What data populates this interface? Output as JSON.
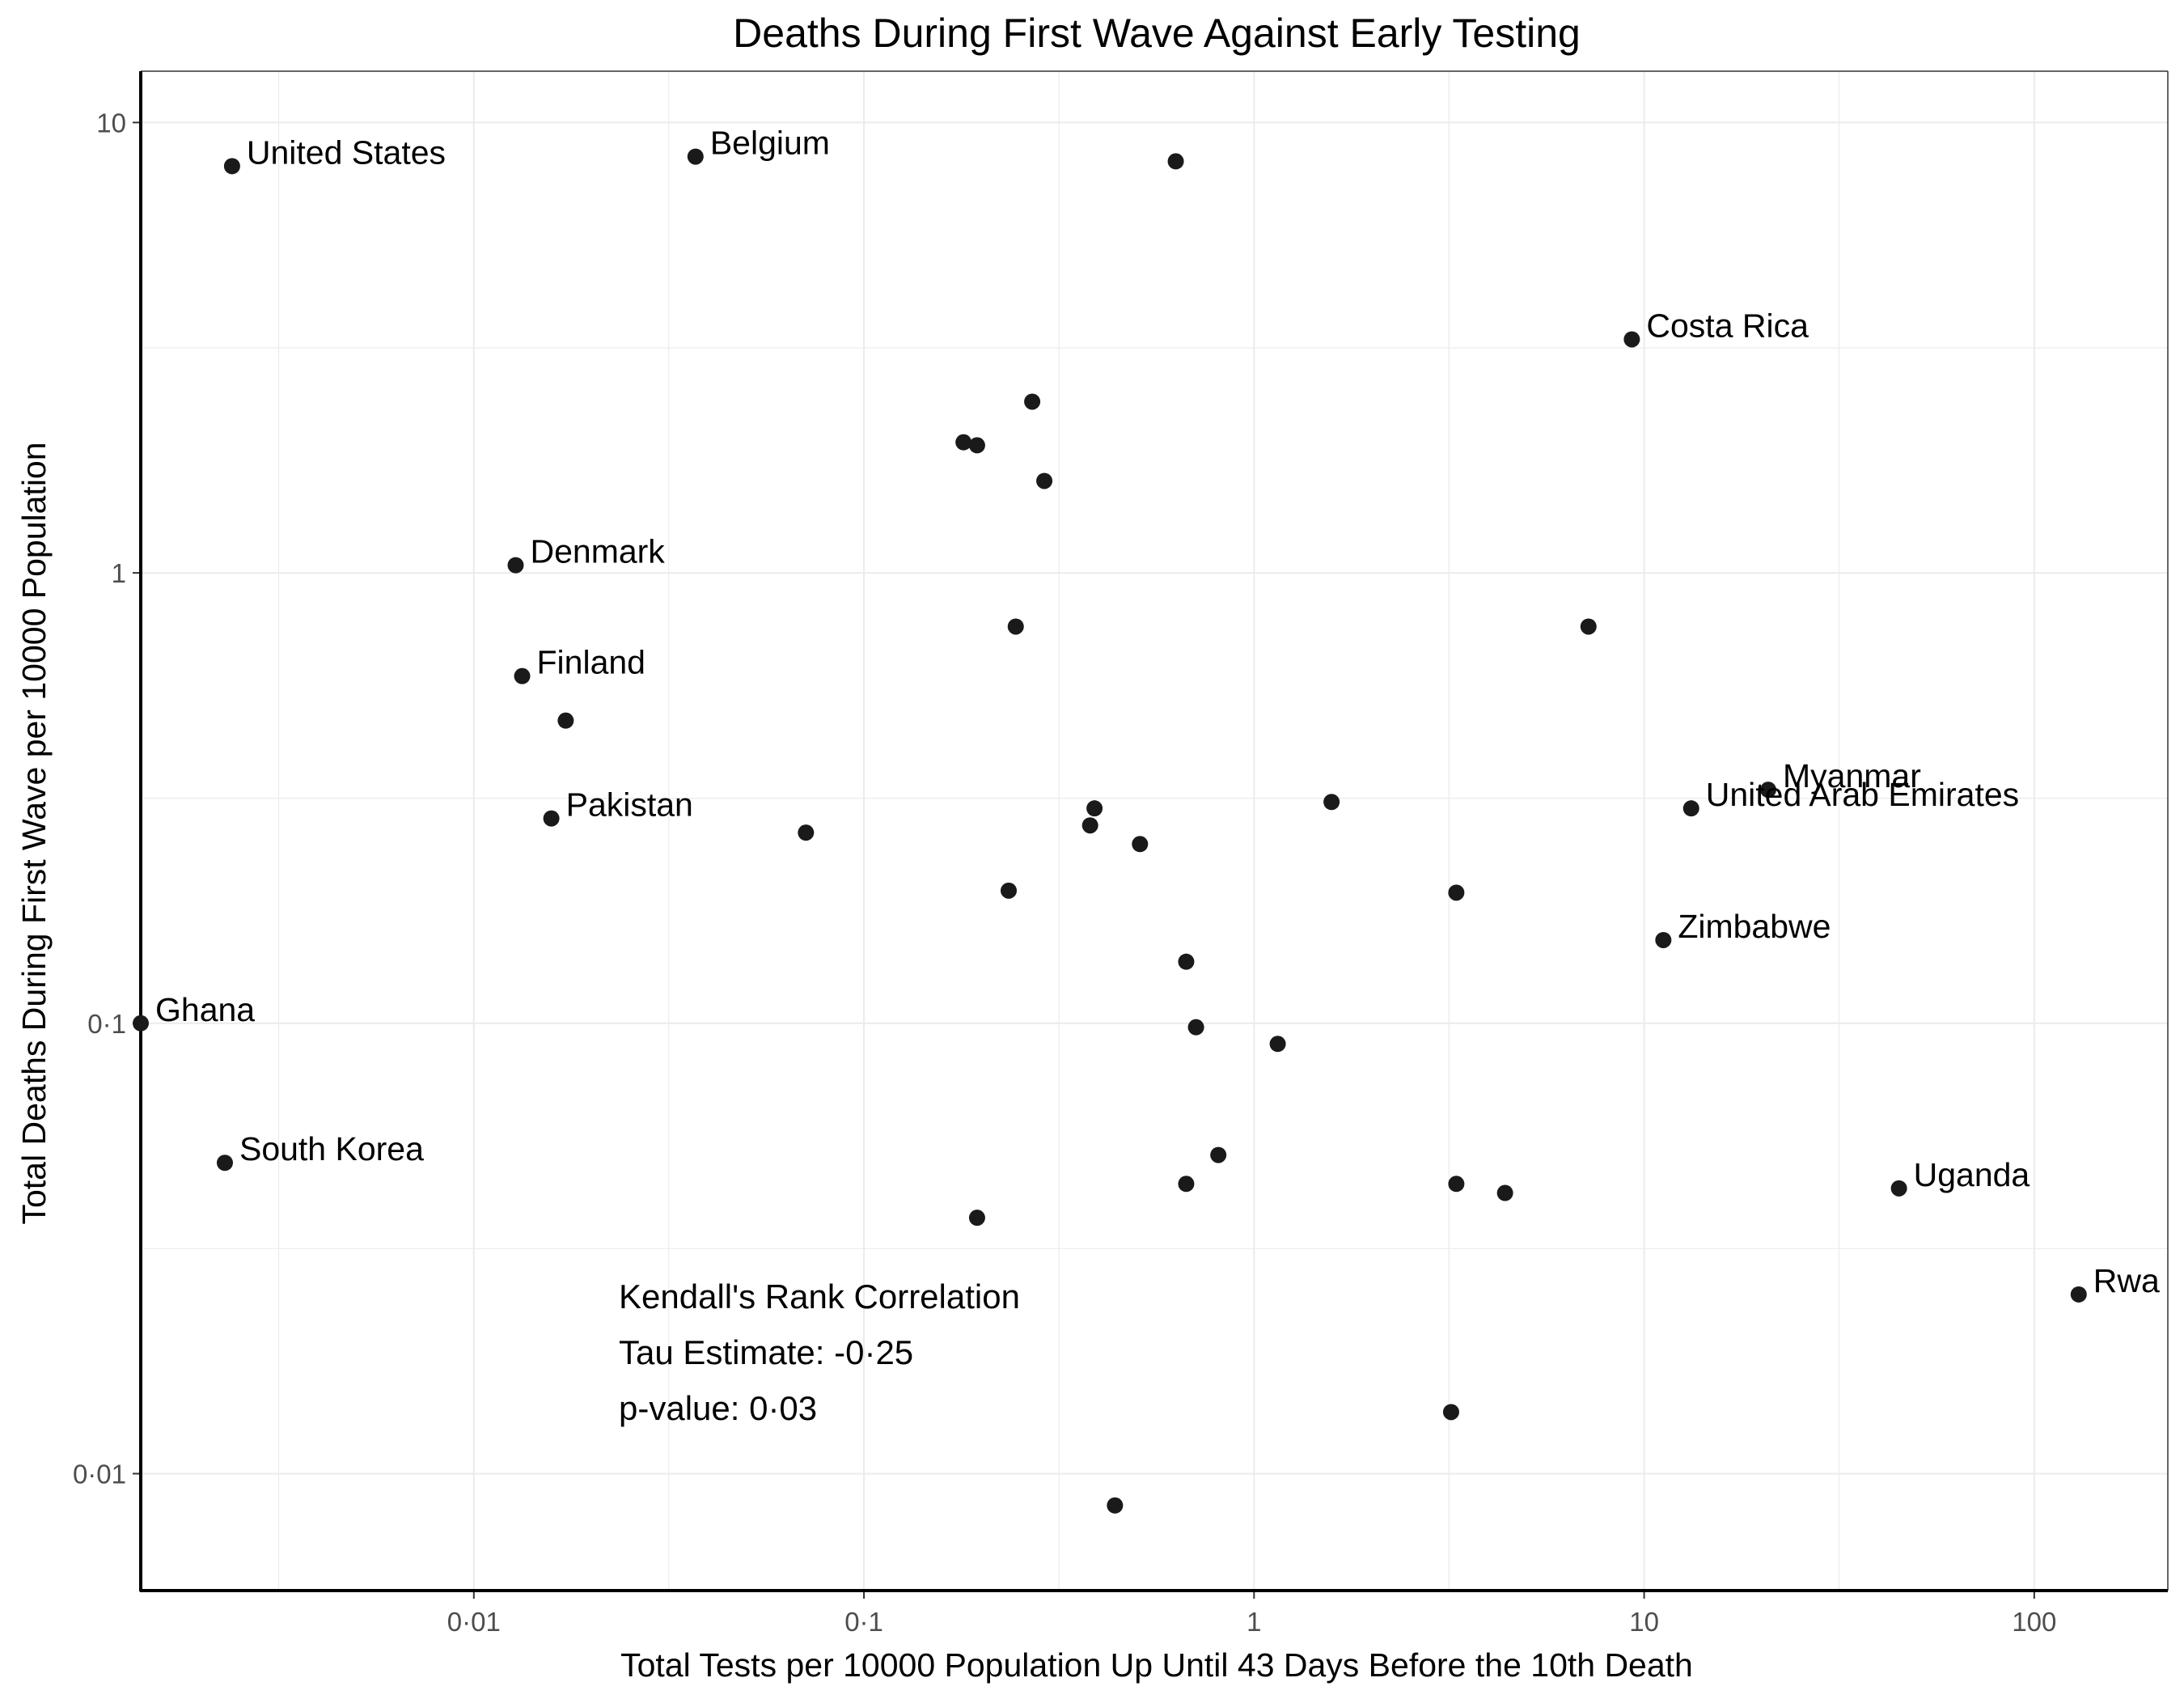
{
  "chart_data": {
    "type": "scatter",
    "title": "Deaths During First Wave Against Early Testing",
    "xlabel": "Total Tests per 10000 Population Up Until 43 Days Before the 10th Death",
    "ylabel": "Total Deaths During First Wave per 10000 Population",
    "x_scale": "log10",
    "y_scale": "log10",
    "xlim": [
      0.0014,
      220
    ],
    "ylim": [
      0.0055,
      13
    ],
    "grid": true,
    "x_ticks": [
      {
        "value": 0.01,
        "label": "0·01"
      },
      {
        "value": 0.1,
        "label": "0·1"
      },
      {
        "value": 1,
        "label": "1"
      },
      {
        "value": 10,
        "label": "10"
      },
      {
        "value": 100,
        "label": "100"
      }
    ],
    "y_ticks": [
      {
        "value": 0.01,
        "label": "0·01"
      },
      {
        "value": 0.1,
        "label": "0·1"
      },
      {
        "value": 1,
        "label": "1"
      },
      {
        "value": 10,
        "label": "10"
      }
    ],
    "points": [
      {
        "x": 0.0024,
        "y": 8.0,
        "label": "United States"
      },
      {
        "x": 0.037,
        "y": 8.4,
        "label": "Belgium"
      },
      {
        "x": 0.63,
        "y": 8.2,
        "label": ""
      },
      {
        "x": 9.3,
        "y": 3.3,
        "label": "Costa Rica"
      },
      {
        "x": 0.27,
        "y": 2.4,
        "label": ""
      },
      {
        "x": 0.18,
        "y": 1.95,
        "label": ""
      },
      {
        "x": 0.195,
        "y": 1.92,
        "label": ""
      },
      {
        "x": 0.29,
        "y": 1.6,
        "label": ""
      },
      {
        "x": 0.0128,
        "y": 1.04,
        "label": "Denmark"
      },
      {
        "x": 0.245,
        "y": 0.76,
        "label": ""
      },
      {
        "x": 7.2,
        "y": 0.76,
        "label": ""
      },
      {
        "x": 0.0133,
        "y": 0.59,
        "label": "Finland"
      },
      {
        "x": 0.0172,
        "y": 0.47,
        "label": ""
      },
      {
        "x": 0.0158,
        "y": 0.285,
        "label": "Pakistan"
      },
      {
        "x": 0.071,
        "y": 0.265,
        "label": ""
      },
      {
        "x": 0.39,
        "y": 0.3,
        "label": ""
      },
      {
        "x": 0.38,
        "y": 0.275,
        "label": ""
      },
      {
        "x": 0.51,
        "y": 0.25,
        "label": ""
      },
      {
        "x": 1.58,
        "y": 0.31,
        "label": ""
      },
      {
        "x": 20.8,
        "y": 0.33,
        "label": "Myanmar"
      },
      {
        "x": 13.2,
        "y": 0.3,
        "label": "United Arab Emirates"
      },
      {
        "x": 0.235,
        "y": 0.197,
        "label": ""
      },
      {
        "x": 3.3,
        "y": 0.195,
        "label": ""
      },
      {
        "x": 11.2,
        "y": 0.153,
        "label": "Zimbabwe"
      },
      {
        "x": 0.67,
        "y": 0.137,
        "label": ""
      },
      {
        "x": 0.0014,
        "y": 0.1,
        "label": "Ghana"
      },
      {
        "x": 0.71,
        "y": 0.098,
        "label": ""
      },
      {
        "x": 1.15,
        "y": 0.09,
        "label": ""
      },
      {
        "x": 0.0023,
        "y": 0.049,
        "label": "South Korea"
      },
      {
        "x": 0.81,
        "y": 0.051,
        "label": ""
      },
      {
        "x": 0.67,
        "y": 0.044,
        "label": ""
      },
      {
        "x": 3.3,
        "y": 0.044,
        "label": ""
      },
      {
        "x": 4.4,
        "y": 0.042,
        "label": ""
      },
      {
        "x": 45,
        "y": 0.043,
        "label": "Uganda"
      },
      {
        "x": 0.195,
        "y": 0.037,
        "label": ""
      },
      {
        "x": 130,
        "y": 0.025,
        "label": "Rwa"
      },
      {
        "x": 3.2,
        "y": 0.0137,
        "label": ""
      },
      {
        "x": 0.44,
        "y": 0.0085,
        "label": ""
      }
    ],
    "annotation": [
      "Kendall's Rank Correlation",
      "Tau Estimate: -0·25",
      "p-value: 0·03"
    ],
    "marker_color": "#1a1a1a"
  }
}
